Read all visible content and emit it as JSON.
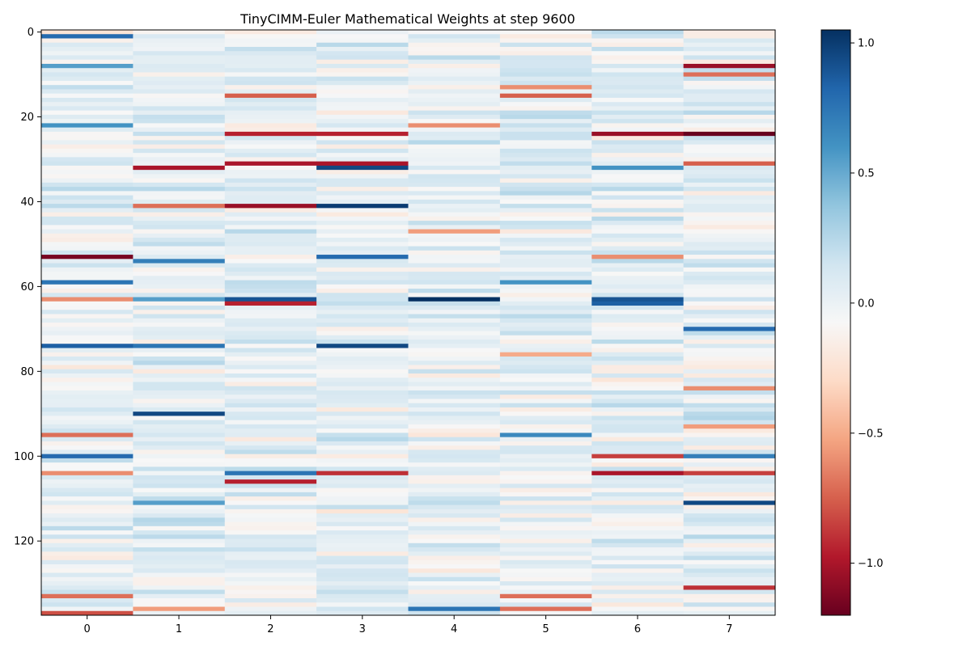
{
  "chart_data": {
    "type": "heatmap",
    "title": "TinyCIMM-Euler Mathematical Weights at step 9600",
    "xlabel": "",
    "ylabel": "",
    "x_ticks": [
      0,
      1,
      2,
      3,
      4,
      5,
      6,
      7
    ],
    "y_ticks": [
      0,
      20,
      40,
      60,
      80,
      100,
      120
    ],
    "rows": 138,
    "columns": 8,
    "colormap": "RdBu",
    "vmin": -1.2,
    "vmax": 1.05,
    "colorbar_ticks": [
      {
        "value": 1.0,
        "label": "1.0"
      },
      {
        "value": 0.5,
        "label": "0.5"
      },
      {
        "value": 0.0,
        "label": "0.0"
      },
      {
        "value": -0.5,
        "label": "−0.5"
      },
      {
        "value": -1.0,
        "label": "−1.0"
      }
    ],
    "grid": false,
    "notable_cells": [
      {
        "row": 1,
        "col": 0,
        "value": 0.8
      },
      {
        "row": 8,
        "col": 0,
        "value": 0.55
      },
      {
        "row": 22,
        "col": 0,
        "value": 0.6
      },
      {
        "row": 53,
        "col": 0,
        "value": -1.15
      },
      {
        "row": 59,
        "col": 0,
        "value": 0.75
      },
      {
        "row": 63,
        "col": 0,
        "value": -0.6
      },
      {
        "row": 74,
        "col": 0,
        "value": 0.85
      },
      {
        "row": 95,
        "col": 0,
        "value": -0.7
      },
      {
        "row": 100,
        "col": 0,
        "value": 0.8
      },
      {
        "row": 104,
        "col": 0,
        "value": -0.6
      },
      {
        "row": 133,
        "col": 0,
        "value": -0.7
      },
      {
        "row": 137,
        "col": 0,
        "value": -0.8
      },
      {
        "row": 32,
        "col": 1,
        "value": -1.0
      },
      {
        "row": 41,
        "col": 1,
        "value": -0.7
      },
      {
        "row": 54,
        "col": 1,
        "value": 0.7
      },
      {
        "row": 63,
        "col": 1,
        "value": 0.55
      },
      {
        "row": 74,
        "col": 1,
        "value": 0.75
      },
      {
        "row": 90,
        "col": 1,
        "value": 0.95
      },
      {
        "row": 111,
        "col": 1,
        "value": 0.55
      },
      {
        "row": 136,
        "col": 1,
        "value": -0.55
      },
      {
        "row": 15,
        "col": 2,
        "value": -0.75
      },
      {
        "row": 24,
        "col": 2,
        "value": -0.95
      },
      {
        "row": 31,
        "col": 2,
        "value": -1.0
      },
      {
        "row": 41,
        "col": 2,
        "value": -1.05
      },
      {
        "row": 63,
        "col": 2,
        "value": 0.9
      },
      {
        "row": 64,
        "col": 2,
        "value": -0.95
      },
      {
        "row": 104,
        "col": 2,
        "value": 0.75
      },
      {
        "row": 106,
        "col": 2,
        "value": -0.95
      },
      {
        "row": 24,
        "col": 3,
        "value": -0.95
      },
      {
        "row": 31,
        "col": 3,
        "value": -1.0
      },
      {
        "row": 32,
        "col": 3,
        "value": 0.95
      },
      {
        "row": 41,
        "col": 3,
        "value": 1.0
      },
      {
        "row": 53,
        "col": 3,
        "value": 0.8
      },
      {
        "row": 74,
        "col": 3,
        "value": 0.95
      },
      {
        "row": 104,
        "col": 3,
        "value": -0.9
      },
      {
        "row": 22,
        "col": 4,
        "value": -0.6
      },
      {
        "row": 47,
        "col": 4,
        "value": -0.55
      },
      {
        "row": 63,
        "col": 4,
        "value": 1.05
      },
      {
        "row": 136,
        "col": 4,
        "value": 0.75
      },
      {
        "row": 13,
        "col": 5,
        "value": -0.6
      },
      {
        "row": 15,
        "col": 5,
        "value": -0.75
      },
      {
        "row": 59,
        "col": 5,
        "value": 0.6
      },
      {
        "row": 76,
        "col": 5,
        "value": -0.5
      },
      {
        "row": 95,
        "col": 5,
        "value": 0.65
      },
      {
        "row": 133,
        "col": 5,
        "value": -0.7
      },
      {
        "row": 136,
        "col": 5,
        "value": -0.7
      },
      {
        "row": 24,
        "col": 6,
        "value": -1.05
      },
      {
        "row": 32,
        "col": 6,
        "value": 0.6
      },
      {
        "row": 53,
        "col": 6,
        "value": -0.6
      },
      {
        "row": 63,
        "col": 6,
        "value": 0.9
      },
      {
        "row": 64,
        "col": 6,
        "value": 0.85
      },
      {
        "row": 100,
        "col": 6,
        "value": -0.85
      },
      {
        "row": 104,
        "col": 6,
        "value": -1.0
      },
      {
        "row": 8,
        "col": 7,
        "value": -1.05
      },
      {
        "row": 10,
        "col": 7,
        "value": -0.7
      },
      {
        "row": 24,
        "col": 7,
        "value": -1.2
      },
      {
        "row": 31,
        "col": 7,
        "value": -0.75
      },
      {
        "row": 70,
        "col": 7,
        "value": 0.8
      },
      {
        "row": 84,
        "col": 7,
        "value": -0.6
      },
      {
        "row": 93,
        "col": 7,
        "value": -0.55
      },
      {
        "row": 100,
        "col": 7,
        "value": 0.7
      },
      {
        "row": 104,
        "col": 7,
        "value": -0.85
      },
      {
        "row": 111,
        "col": 7,
        "value": 0.95
      },
      {
        "row": 131,
        "col": 7,
        "value": -0.9
      }
    ]
  },
  "colors": {
    "cmap_stops": [
      "#67001f",
      "#b2182b",
      "#d6604d",
      "#f4a582",
      "#fddbc7",
      "#f7f7f7",
      "#d1e5f0",
      "#92c5de",
      "#4393c3",
      "#2166ac",
      "#053061"
    ]
  }
}
